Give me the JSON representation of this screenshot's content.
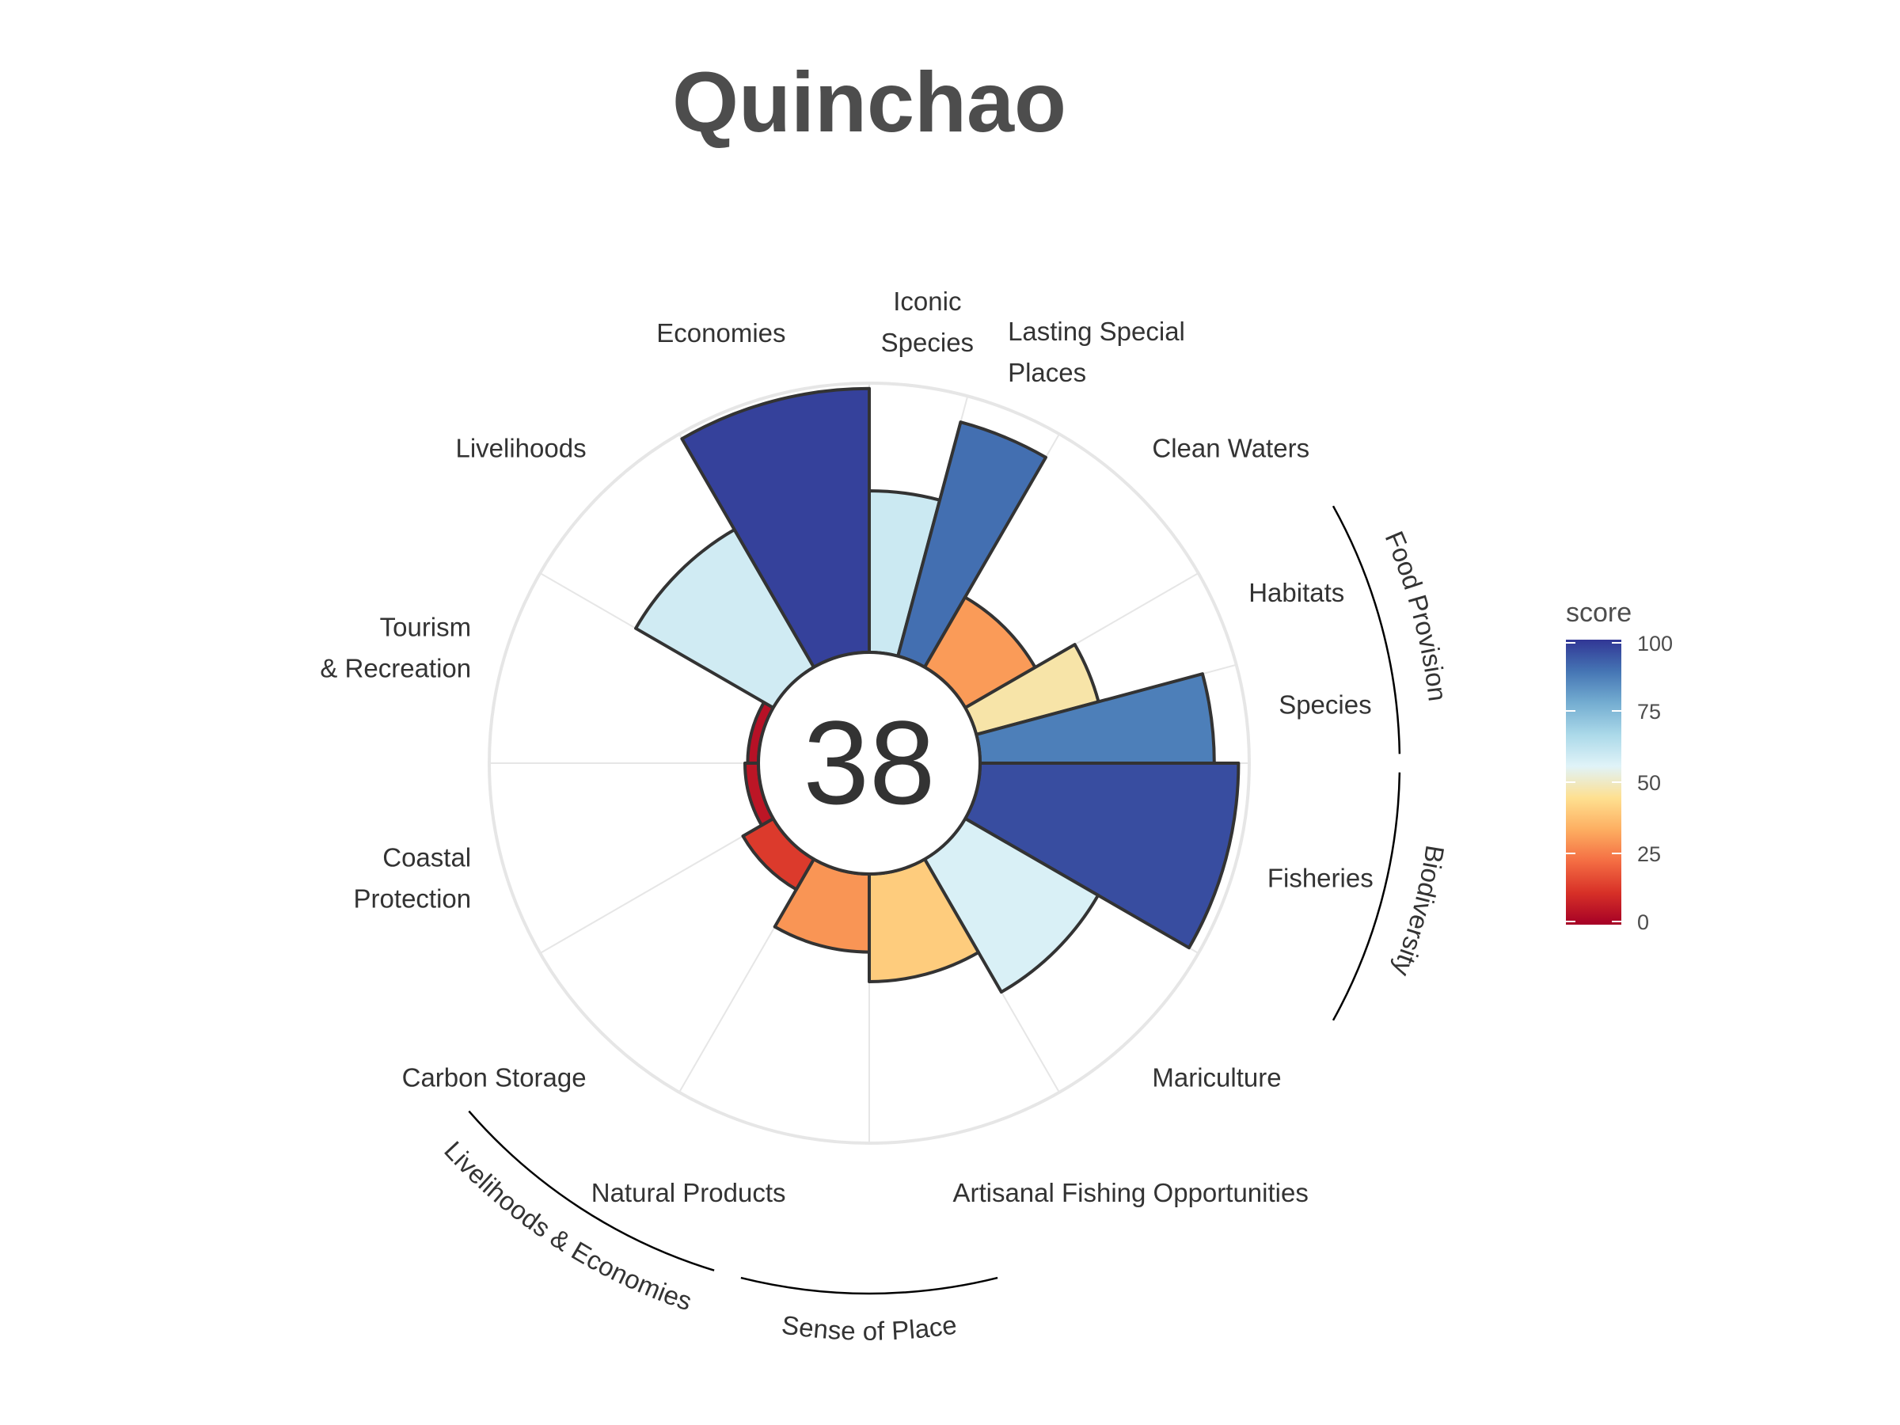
{
  "title": "Quinchao",
  "chart_data": {
    "type": "flower-polar-bar",
    "title": "Quinchao",
    "center_score": "38",
    "radial_range": [
      0,
      100
    ],
    "goals": [
      {
        "label": "Fisheries",
        "score": 96,
        "weight": 1.0
      },
      {
        "label": "Mariculture",
        "score": 57,
        "weight": 1.0
      },
      {
        "label": "Artisanal Fishing Opportunities",
        "score": 40,
        "weight": 1.0
      },
      {
        "label": "Natural Products",
        "score": 29,
        "weight": 1.0
      },
      {
        "label": "Carbon Storage",
        "score": 13,
        "weight": 1.0
      },
      {
        "label": "Coastal Protection",
        "score": 5,
        "weight": 1.0
      },
      {
        "label": "Tourism & Recreation",
        "score": 4,
        "weight": 1.0
      },
      {
        "label": "Livelihoods",
        "score": 59,
        "weight": 1.0
      },
      {
        "label": "Economies",
        "score": 98,
        "weight": 1.0
      },
      {
        "label": "Iconic Species",
        "score": 60,
        "weight": 0.5
      },
      {
        "label": "Lasting Special Places",
        "score": 90,
        "weight": 0.5
      },
      {
        "label": "Clean Waters",
        "score": 30,
        "weight": 1.0
      },
      {
        "label": "Habitats",
        "score": 47,
        "weight": 0.5
      },
      {
        "label": "Species",
        "score": 87,
        "weight": 0.5
      }
    ],
    "groups": [
      "Food Provision",
      "Biodiversity",
      "Sense of Place",
      "Livelihoods & Economies"
    ],
    "legend": {
      "title": "score",
      "ticks": [
        "100",
        "75",
        "50",
        "25",
        "0"
      ],
      "colors": [
        "#a50026",
        "#d73027",
        "#f46d43",
        "#fdae61",
        "#fee090",
        "#e0f3f8",
        "#abd9e9",
        "#74add1",
        "#4575b4",
        "#313695"
      ]
    }
  }
}
